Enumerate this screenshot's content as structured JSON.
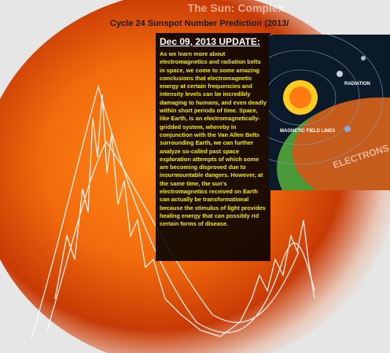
{
  "header": {
    "title": "The Sun: Complex",
    "subtitle": "Cycle 24 Sunspot Number Prediction (2013/"
  },
  "update": {
    "heading": "Dec 09, 2013 UPDATE:",
    "body": "As we learn more about electromagnetics and radiation belts in space, we come to some amazing conclusions that electromagnetic energy at certain frequencies and intensity levels can be incredibly damaging to humans, and even deadly within short periods of time. Space, like Earth, is an electromagnetically-gridded system, whereby in conjunction with the Van Allen Belts surrounding Earth, we can further analyze so-called past space exploration attempts of which some are becoming disproved due to insurmountable dangers. However, at the same time, the sun's electromagnetics received on Earth can actually be transformational because the stimulus of light provides healing energy that can possibly rid certain forms of disease."
  },
  "diagram": {
    "labels": [
      "RADIATION",
      "MAGNETIC FIELD LINES",
      "ELECTRONS"
    ]
  }
}
